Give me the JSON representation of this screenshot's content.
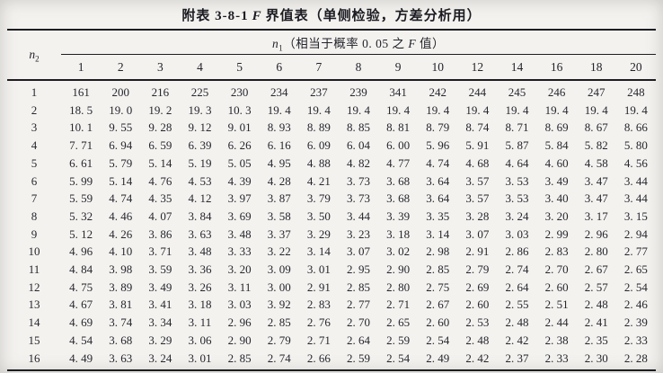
{
  "page": {
    "title_prefix": "附表 3-8-1",
    "title_f": "F",
    "title_suffix": "界值表（单侧检验，方差分析用）"
  },
  "table": {
    "row_var": "n",
    "row_var_sub": "2",
    "col_group": {
      "var": "n",
      "var_sub": "1",
      "desc_pre": "（相当于概率 0. 05 之 ",
      "desc_f": "F",
      "desc_post": " 值）"
    },
    "columns": [
      "1",
      "2",
      "3",
      "4",
      "5",
      "6",
      "7",
      "8",
      "9",
      "10",
      "12",
      "14",
      "16",
      "18",
      "20"
    ],
    "rows": [
      {
        "label": "1",
        "values": [
          "161",
          "200",
          "216",
          "225",
          "230",
          "234",
          "237",
          "239",
          "341",
          "242",
          "244",
          "245",
          "246",
          "247",
          "248"
        ]
      },
      {
        "label": "2",
        "values": [
          "18. 5",
          "19. 0",
          "19. 2",
          "19. 3",
          "10. 3",
          "19. 4",
          "19. 4",
          "19. 4",
          "19. 4",
          "19. 4",
          "19. 4",
          "19. 4",
          "19. 4",
          "19. 4",
          "19. 4"
        ]
      },
      {
        "label": "3",
        "values": [
          "10. 1",
          "9. 55",
          "9. 28",
          "9. 12",
          "9. 01",
          "8. 93",
          "8. 89",
          "8. 85",
          "8. 81",
          "8. 79",
          "8. 74",
          "8. 71",
          "8. 69",
          "8. 67",
          "8. 66"
        ]
      },
      {
        "label": "4",
        "values": [
          "7. 71",
          "6. 94",
          "6. 59",
          "6. 39",
          "6. 26",
          "6. 16",
          "6. 09",
          "6. 04",
          "6. 00",
          "5. 96",
          "5. 91",
          "5. 87",
          "5. 84",
          "5. 82",
          "5. 80"
        ]
      },
      {
        "label": "5",
        "values": [
          "6. 61",
          "5. 79",
          "5. 14",
          "5. 19",
          "5. 05",
          "4. 95",
          "4. 88",
          "4. 82",
          "4. 77",
          "4. 74",
          "4. 68",
          "4. 64",
          "4. 60",
          "4. 58",
          "4. 56"
        ]
      },
      {
        "label": "6",
        "values": [
          "5. 99",
          "5. 14",
          "4. 76",
          "4. 53",
          "4. 39",
          "4. 28",
          "4. 21",
          "3. 73",
          "3. 68",
          "3. 64",
          "3. 57",
          "3. 53",
          "3. 49",
          "3. 47",
          "3. 44"
        ]
      },
      {
        "label": "7",
        "values": [
          "5. 59",
          "4. 74",
          "4. 35",
          "4. 12",
          "3. 97",
          "3. 87",
          "3. 79",
          "3. 73",
          "3. 68",
          "3. 64",
          "3. 57",
          "3. 53",
          "3. 40",
          "3. 47",
          "3. 44"
        ]
      },
      {
        "label": "8",
        "values": [
          "5. 32",
          "4. 46",
          "4. 07",
          "3. 84",
          "3. 69",
          "3. 58",
          "3. 50",
          "3. 44",
          "3. 39",
          "3. 35",
          "3. 28",
          "3. 24",
          "3. 20",
          "3. 17",
          "3. 15"
        ]
      },
      {
        "label": "9",
        "values": [
          "5. 12",
          "4. 26",
          "3. 86",
          "3. 63",
          "3. 48",
          "3. 37",
          "3. 29",
          "3. 23",
          "3. 18",
          "3. 14",
          "3. 07",
          "3. 03",
          "2. 99",
          "2. 96",
          "2. 94"
        ]
      },
      {
        "label": "10",
        "values": [
          "4. 96",
          "4. 10",
          "3. 71",
          "3. 48",
          "3. 33",
          "3. 22",
          "3. 14",
          "3. 07",
          "3. 02",
          "2. 98",
          "2. 91",
          "2. 86",
          "2. 83",
          "2. 80",
          "2. 77"
        ]
      },
      {
        "label": "11",
        "values": [
          "4. 84",
          "3. 98",
          "3. 59",
          "3. 36",
          "3. 20",
          "3. 09",
          "3. 01",
          "2. 95",
          "2. 90",
          "2. 85",
          "2. 79",
          "2. 74",
          "2. 70",
          "2. 67",
          "2. 65"
        ]
      },
      {
        "label": "12",
        "values": [
          "4. 75",
          "3. 89",
          "3. 49",
          "3. 26",
          "3. 11",
          "3. 00",
          "2. 91",
          "2. 85",
          "2. 80",
          "2. 75",
          "2. 69",
          "2. 64",
          "2. 60",
          "2. 57",
          "2. 54"
        ]
      },
      {
        "label": "13",
        "values": [
          "4. 67",
          "3. 81",
          "3. 41",
          "3. 18",
          "3. 03",
          "3. 92",
          "2. 83",
          "2. 77",
          "2. 71",
          "2. 67",
          "2. 60",
          "2. 55",
          "2. 51",
          "2. 48",
          "2. 46"
        ]
      },
      {
        "label": "14",
        "values": [
          "4. 69",
          "3. 74",
          "3. 34",
          "3. 11",
          "2. 96",
          "2. 85",
          "2. 76",
          "2. 70",
          "2. 65",
          "2. 60",
          "2. 53",
          "2. 48",
          "2. 44",
          "2. 41",
          "2. 39"
        ]
      },
      {
        "label": "15",
        "values": [
          "4. 54",
          "3. 68",
          "3. 29",
          "3. 06",
          "2. 90",
          "2. 79",
          "2. 71",
          "2. 64",
          "2. 59",
          "2. 54",
          "2. 48",
          "2. 42",
          "2. 38",
          "2. 35",
          "2. 33"
        ]
      },
      {
        "label": "16",
        "values": [
          "4. 49",
          "3. 63",
          "3. 24",
          "3. 01",
          "2. 85",
          "2. 74",
          "2. 66",
          "2. 59",
          "2. 54",
          "2. 49",
          "2. 42",
          "2. 37",
          "2. 33",
          "2. 30",
          "2. 28"
        ]
      }
    ]
  }
}
